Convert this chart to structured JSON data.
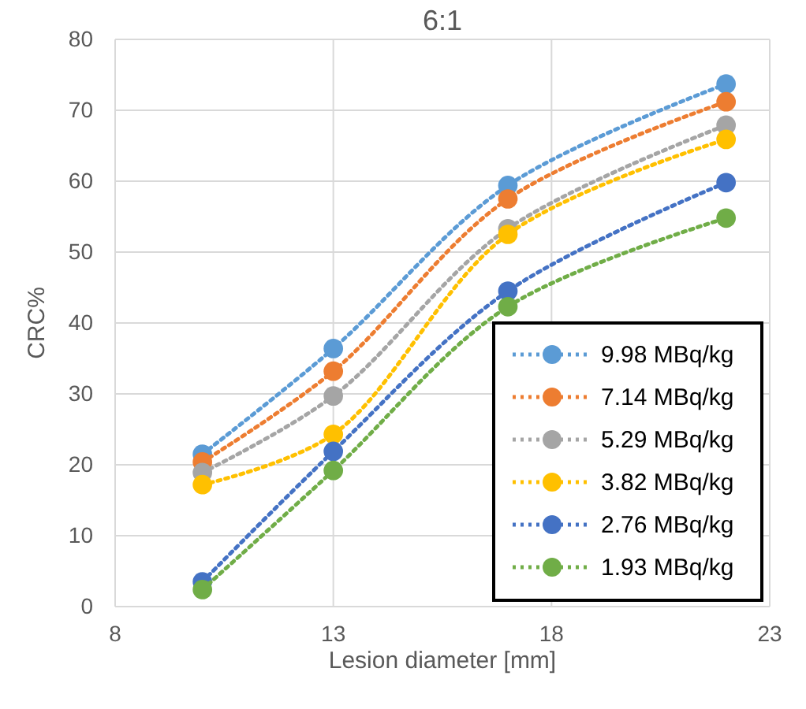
{
  "chart_data": {
    "type": "line",
    "title": "6:1",
    "xlabel": "Lesion diameter [mm]",
    "ylabel": "CRC%",
    "x": [
      10,
      13,
      17,
      22
    ],
    "series": [
      {
        "name": "9.98 MBq/kg",
        "color": "#5b9bd5",
        "values": [
          21.5,
          36.4,
          59.4,
          73.7
        ]
      },
      {
        "name": "7.14 MBq/kg",
        "color": "#ed7d31",
        "values": [
          20.4,
          33.2,
          57.5,
          71.2
        ]
      },
      {
        "name": "5.29 MBq/kg",
        "color": "#a5a5a5",
        "values": [
          18.9,
          29.7,
          53.3,
          67.9
        ]
      },
      {
        "name": "3.82 MBq/kg",
        "color": "#ffc000",
        "values": [
          17.2,
          24.3,
          52.5,
          65.9
        ]
      },
      {
        "name": "2.76 MBq/kg",
        "color": "#4472c4",
        "values": [
          3.5,
          21.9,
          44.5,
          59.8
        ]
      },
      {
        "name": "1.93 MBq/kg",
        "color": "#70ad47",
        "values": [
          2.4,
          19.2,
          42.3,
          54.8
        ]
      }
    ],
    "xlim": [
      8,
      23
    ],
    "xticks": [
      8,
      13,
      18,
      23
    ],
    "ylim": [
      0,
      80
    ],
    "yticks": [
      0,
      10,
      20,
      30,
      40,
      50,
      60,
      70,
      80
    ],
    "grid": true,
    "legend": "bottom right",
    "marker": "circle",
    "line_style": "dotted"
  }
}
